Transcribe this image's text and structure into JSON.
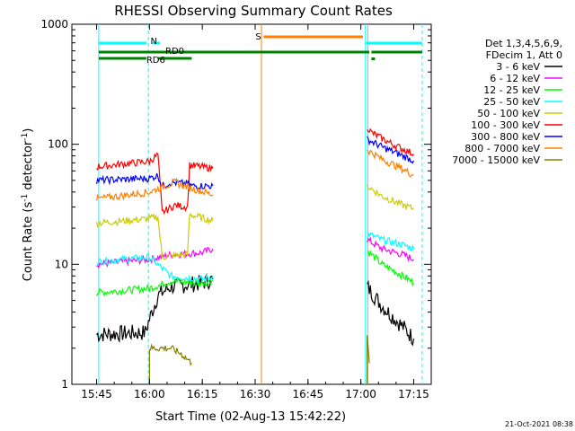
{
  "chart_data": {
    "type": "line",
    "title": "RHESSI Observing Summary Count Rates",
    "xlabel": "Start Time (02-Aug-13 15:42:22)",
    "ylabel": "Count Rate (s",
    "ylabel_sup1": "-1",
    "ylabel_mid": " detector",
    "ylabel_sup2": "-1",
    "ylabel_end": ")",
    "y_scale": "log",
    "ylim": [
      1,
      1000
    ],
    "xlim_minutes": [
      15.633,
      17.333
    ],
    "x_ticks": [
      {
        "label": "15:45",
        "h": 15.75
      },
      {
        "label": "16:00",
        "h": 16.0
      },
      {
        "label": "16:15",
        "h": 16.25
      },
      {
        "label": "16:30",
        "h": 16.5
      },
      {
        "label": "16:45",
        "h": 16.75
      },
      {
        "label": "17:00",
        "h": 17.0
      },
      {
        "label": "17:15",
        "h": 17.25
      }
    ],
    "y_ticks": [
      {
        "label": "1",
        "v": 1
      },
      {
        "label": "10",
        "v": 10
      },
      {
        "label": "100",
        "v": 100
      },
      {
        "label": "1000",
        "v": 1000
      }
    ],
    "legend_header": [
      "Det 1,3,4,5,6,9,",
      "FDecim 1, Att 0"
    ],
    "legend_position": "right",
    "grid": false,
    "series": [
      {
        "name": "3 - 6 keV",
        "color": "#000000",
        "segments": [
          [
            [
              15.75,
              2.6
            ],
            [
              15.98,
              2.7
            ],
            [
              16.0,
              3.5
            ],
            [
              16.04,
              5.5
            ],
            [
              16.1,
              6.5
            ],
            [
              16.25,
              7.0
            ],
            [
              16.3,
              7.5
            ]
          ],
          [
            [
              17.03,
              6.5
            ],
            [
              17.1,
              4.5
            ],
            [
              17.2,
              3.0
            ],
            [
              17.25,
              2.4
            ]
          ]
        ]
      },
      {
        "name": "6 - 12 keV",
        "color": "#ff00ff",
        "segments": [
          [
            [
              15.75,
              10.0
            ],
            [
              16.0,
              11.0
            ],
            [
              16.1,
              12.0
            ],
            [
              16.25,
              12.5
            ],
            [
              16.3,
              13.5
            ]
          ],
          [
            [
              17.03,
              16.0
            ],
            [
              17.1,
              13.5
            ],
            [
              17.2,
              12.0
            ],
            [
              17.25,
              11.0
            ]
          ]
        ]
      },
      {
        "name": "12 - 25 keV",
        "color": "#00ff00",
        "segments": [
          [
            [
              15.75,
              5.8
            ],
            [
              16.0,
              6.3
            ],
            [
              16.1,
              7.2
            ],
            [
              16.25,
              7.0
            ],
            [
              16.3,
              7.3
            ]
          ],
          [
            [
              17.03,
              13.0
            ],
            [
              17.1,
              10.0
            ],
            [
              17.2,
              8.0
            ],
            [
              17.25,
              7.0
            ]
          ]
        ]
      },
      {
        "name": "25 - 50 keV",
        "color": "#00ffff",
        "segments": [
          [
            [
              15.75,
              10.5
            ],
            [
              16.0,
              11.5
            ],
            [
              16.1,
              8.0
            ],
            [
              16.25,
              7.5
            ],
            [
              16.3,
              8.0
            ]
          ],
          [
            [
              17.03,
              18.0
            ],
            [
              17.1,
              16.0
            ],
            [
              17.2,
              14.5
            ],
            [
              17.25,
              13.5
            ]
          ]
        ]
      },
      {
        "name": "50 - 100 keV",
        "color": "#cccc00",
        "segments": [
          [
            [
              15.75,
              22.0
            ],
            [
              16.0,
              24.0
            ],
            [
              16.04,
              25.0
            ],
            [
              16.06,
              11.5
            ],
            [
              16.15,
              12.0
            ],
            [
              16.18,
              12.0
            ],
            [
              16.19,
              26.0
            ],
            [
              16.3,
              23.0
            ]
          ],
          [
            [
              17.03,
              45.0
            ],
            [
              17.1,
              37.0
            ],
            [
              17.2,
              31.0
            ],
            [
              17.25,
              29.0
            ]
          ]
        ]
      },
      {
        "name": "100 - 300 keV",
        "color": "#ff0000",
        "segments": [
          [
            [
              15.75,
              65.0
            ],
            [
              16.0,
              72.0
            ],
            [
              16.04,
              82.0
            ],
            [
              16.06,
              27.0
            ],
            [
              16.12,
              31.0
            ],
            [
              16.18,
              30.0
            ],
            [
              16.19,
              67.0
            ],
            [
              16.3,
              63.0
            ]
          ],
          [
            [
              17.03,
              140.0
            ],
            [
              17.05,
              125.0
            ],
            [
              17.15,
              100.0
            ],
            [
              17.25,
              83.0
            ]
          ]
        ]
      },
      {
        "name": "300 - 800 keV",
        "color": "#0000ff",
        "segments": [
          [
            [
              15.75,
              50.0
            ],
            [
              16.0,
              52.0
            ],
            [
              16.04,
              55.0
            ],
            [
              16.06,
              45.0
            ],
            [
              16.1,
              48.0
            ],
            [
              16.18,
              47.0
            ],
            [
              16.2,
              45.0
            ],
            [
              16.3,
              45.0
            ]
          ],
          [
            [
              17.03,
              110.0
            ],
            [
              17.1,
              95.0
            ],
            [
              17.2,
              80.0
            ],
            [
              17.25,
              73.0
            ]
          ]
        ]
      },
      {
        "name": "800 - 7000 keV",
        "color": "#ff8000",
        "segments": [
          [
            [
              15.75,
              35.0
            ],
            [
              16.0,
              40.0
            ],
            [
              16.06,
              44.0
            ],
            [
              16.12,
              48.0
            ],
            [
              16.2,
              43.0
            ],
            [
              16.3,
              38.0
            ]
          ],
          [
            [
              17.03,
              90.0
            ],
            [
              17.1,
              75.0
            ],
            [
              17.2,
              62.0
            ],
            [
              17.25,
              55.0
            ]
          ]
        ]
      },
      {
        "name": "7000 - 15000 keV",
        "color": "#808000",
        "segments": [
          [
            [
              16.0,
              1.0
            ],
            [
              16.0,
              2.0
            ],
            [
              16.1,
              2.0
            ],
            [
              16.15,
              1.8
            ],
            [
              16.2,
              1.5
            ]
          ],
          [
            [
              17.03,
              1.0
            ],
            [
              17.03,
              2.7
            ],
            [
              17.04,
              1.5
            ]
          ]
        ]
      }
    ],
    "annotations": {
      "N_label": "N",
      "S_label": "S",
      "RD0_label": "RD0",
      "RD6_label": "RD6"
    },
    "footer": "21-Oct-2021 08:38"
  }
}
